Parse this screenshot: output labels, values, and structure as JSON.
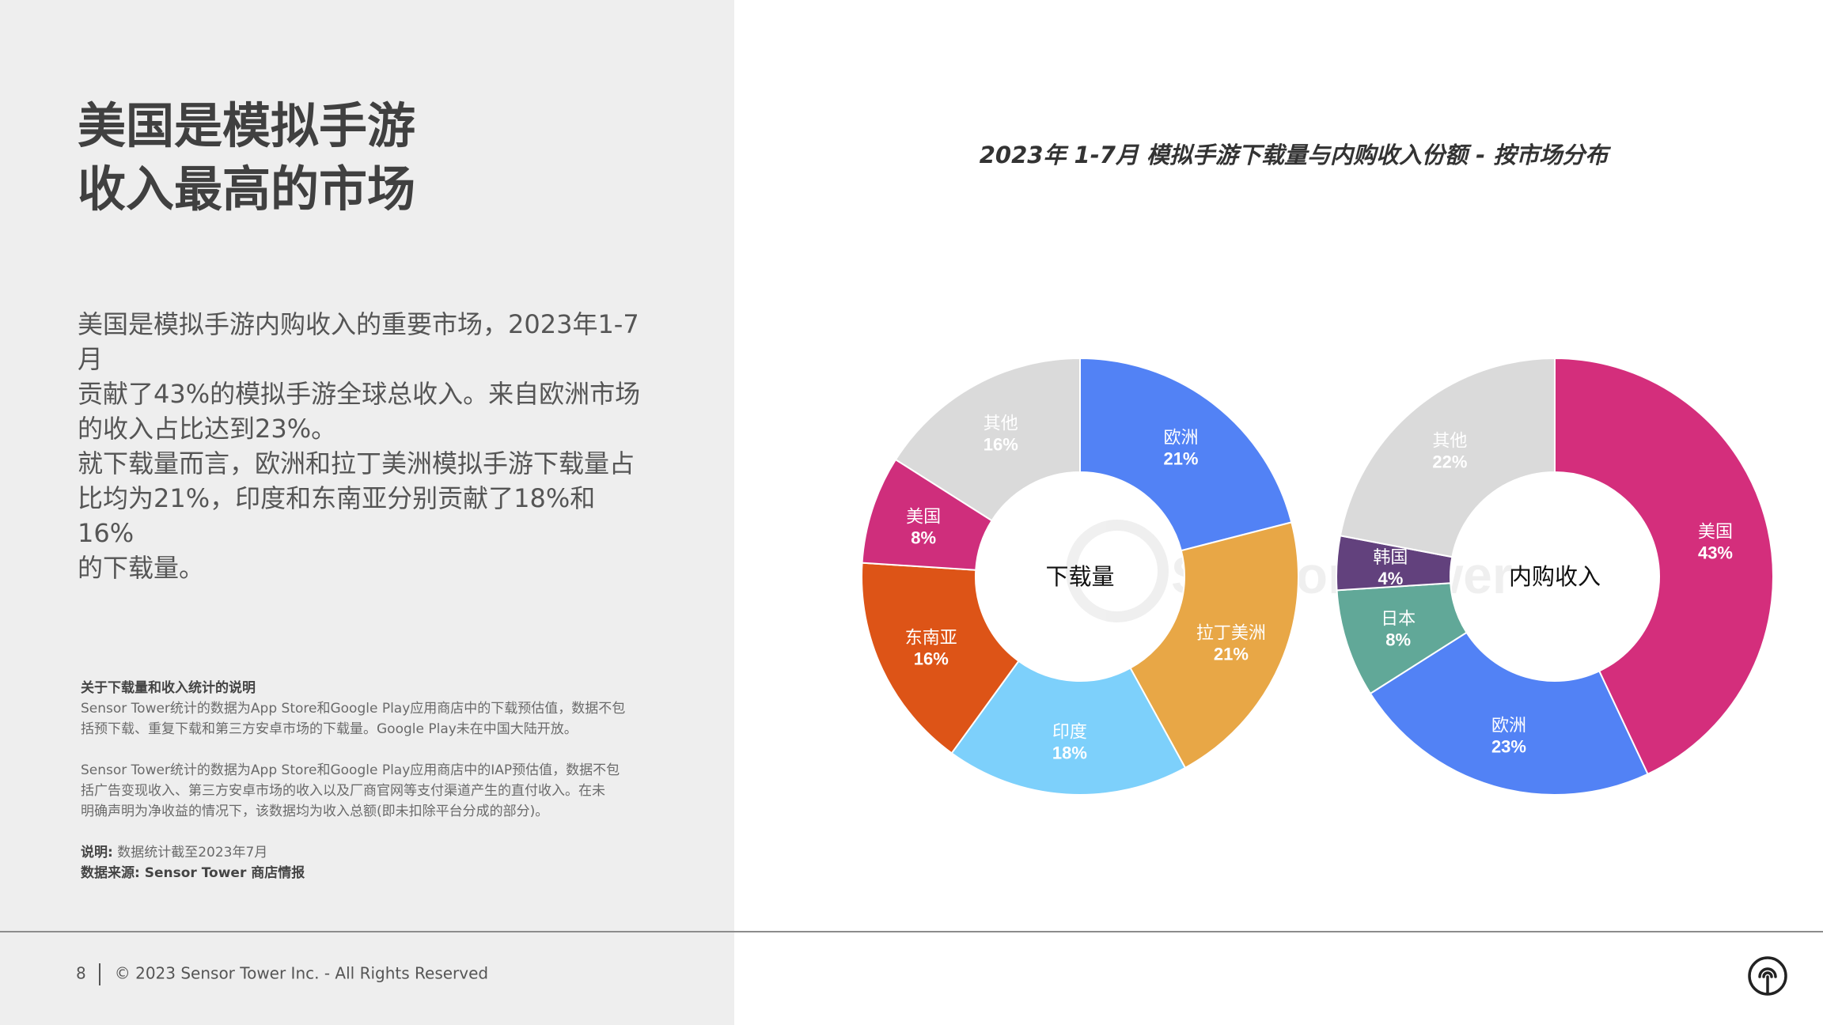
{
  "page": {
    "title_lines": [
      "美国是模拟手游",
      "收入最高的市场"
    ],
    "paragraphs": [
      [
        "美国是模拟手游内购收入的重要市场，2023年1-7月",
        "贡献了43%的模拟手游全球总收入。来自欧洲市场",
        "的收入占比达到23%。"
      ],
      [
        "就下载量而言，欧洲和拉丁美洲模拟手游下载量占",
        "比均为21%，印度和东南亚分别贡献了18%和16%",
        "的下载量。"
      ]
    ],
    "notes": {
      "heading": "关于下载量和收入统计的说明",
      "download_note": [
        "Sensor Tower统计的数据为App Store和Google Play应用商店中的下载预估值，数据不包",
        "括预下载、重复下载和第三方安卓市场的下载量。Google Play未在中国大陆开放。"
      ],
      "iap_note": [
        "Sensor  Tower统计的数据为App  Store和Google  Play应用商店中的IAP预估值，数据不包",
        "括广告变现收入、第三方安卓市场的收入以及厂商官网等支付渠道产生的直付收入。在未",
        "明确声明为净收益的情况下，该数据均为收入总额(即未扣除平台分成的部分)。"
      ],
      "explain_label": "说明:",
      "explain_text": "数据统计截至2023年7月",
      "source": "数据来源: Sensor Tower 商店情报"
    },
    "footer": {
      "page_number": "8",
      "copyright": "© 2023 Sensor Tower Inc. - All Rights Reserved"
    },
    "watermark_text": "Sensor Tower",
    "logo_icon": "sensor-tower-logo-icon"
  },
  "chart_data": {
    "title": "2023年 1-7月  模拟手游下载量与内购收入份额 - 按市场分布",
    "charts": [
      {
        "type": "pie",
        "variant": "donut",
        "center_label": "下载量",
        "series": [
          {
            "name": "欧洲",
            "value": 21,
            "label": "21%",
            "color": "#5282f5"
          },
          {
            "name": "拉丁美洲",
            "value": 21,
            "label": "21%",
            "color": "#e8a746"
          },
          {
            "name": "印度",
            "value": 18,
            "label": "18%",
            "color": "#7dd0fb"
          },
          {
            "name": "东南亚",
            "value": 16,
            "label": "16%",
            "color": "#dd5417"
          },
          {
            "name": "美国",
            "value": 8,
            "label": "8%",
            "color": "#cf2e7c"
          },
          {
            "name": "其他",
            "value": 16,
            "label": "16%",
            "color": "#dadada"
          }
        ]
      },
      {
        "type": "pie",
        "variant": "donut",
        "center_label": "内购收入",
        "series": [
          {
            "name": "美国",
            "value": 43,
            "label": "43%",
            "color": "#d42e7c"
          },
          {
            "name": "欧洲",
            "value": 23,
            "label": "23%",
            "color": "#5282f5"
          },
          {
            "name": "日本",
            "value": 8,
            "label": "8%",
            "color": "#61a898"
          },
          {
            "name": "韩国",
            "value": 4,
            "label": "4%",
            "color": "#62417d"
          },
          {
            "name": "其他",
            "value": 22,
            "label": "22%",
            "color": "#dadada"
          }
        ]
      }
    ]
  }
}
